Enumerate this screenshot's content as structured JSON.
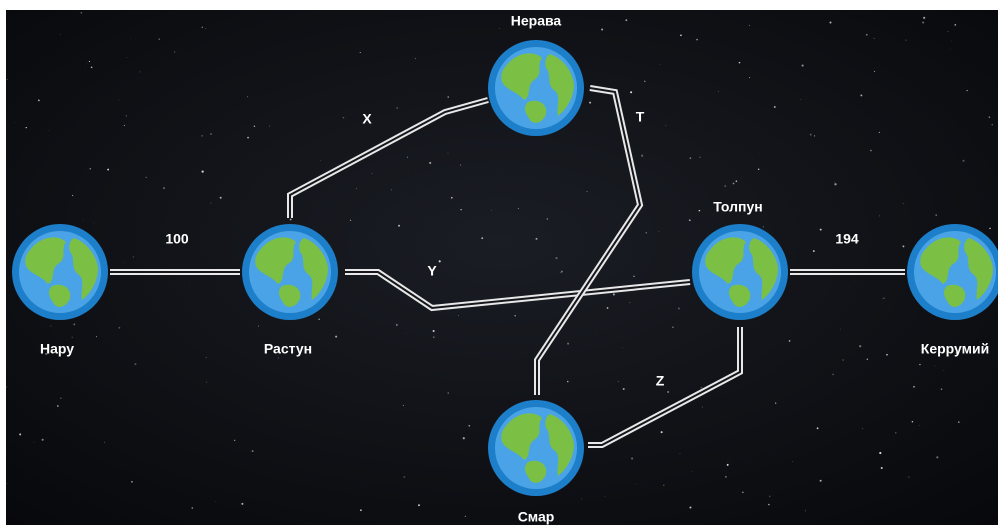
{
  "nodes": [
    {
      "label": "Нару"
    },
    {
      "label": "Растун"
    },
    {
      "label": "Нерава"
    },
    {
      "label": "Толпун"
    },
    {
      "label": "Керрумий"
    },
    {
      "label": "Смар"
    }
  ],
  "edges": [
    {
      "label": 100
    },
    {
      "label": "X"
    },
    {
      "label": "Y"
    },
    {
      "label": "T"
    },
    {
      "label": 194
    },
    {
      "label": "Z"
    }
  ]
}
